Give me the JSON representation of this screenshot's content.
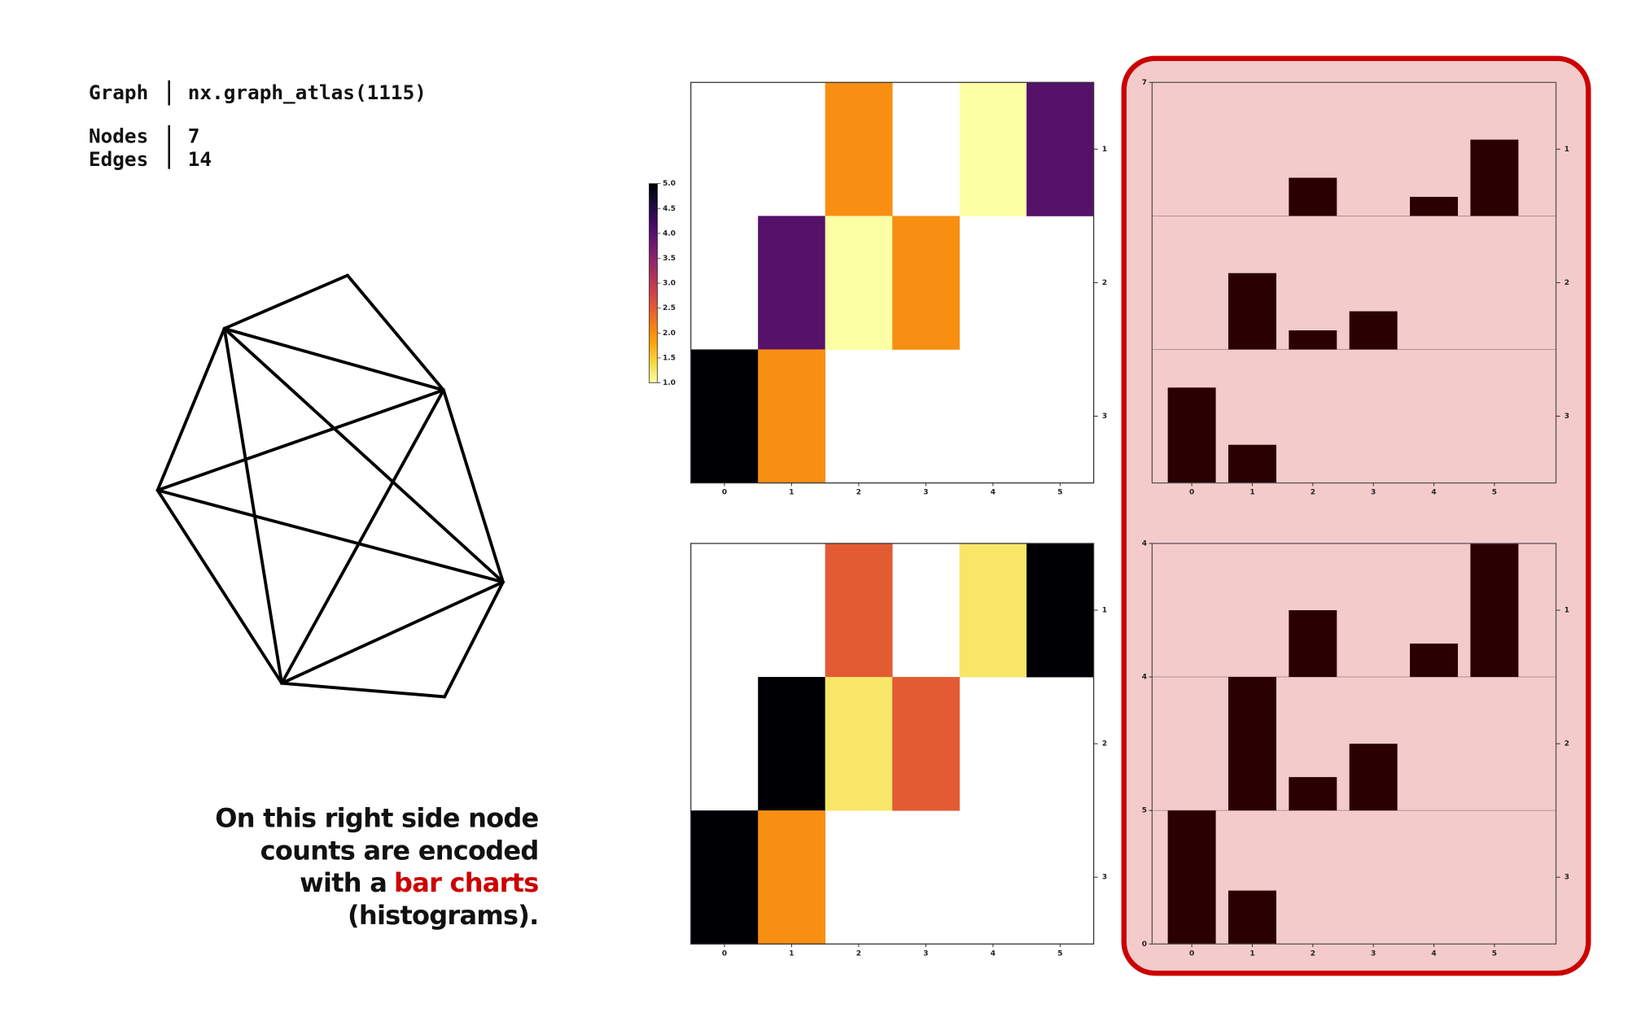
{
  "info": {
    "graph_label": "Graph",
    "graph_value": "nx.graph_atlas(1115)",
    "nodes_label": "Nodes",
    "nodes_value": "7",
    "edges_label": "Edges",
    "edges_value": "14"
  },
  "annotation": {
    "line1": "On this right side node",
    "line2": "counts are encoded",
    "line3": "with a",
    "highlight": "bar charts",
    "line4": "(histograms)."
  },
  "chart_data": [
    {
      "type": "heatmap",
      "categories": [
        "0",
        "1",
        "2",
        "3",
        "4",
        "5"
      ],
      "rows": [
        "1",
        "2",
        "3"
      ],
      "values": [
        [
          null,
          null,
          2,
          null,
          1,
          4
        ],
        [
          null,
          4,
          1,
          2,
          null,
          null
        ],
        [
          5,
          2,
          null,
          null,
          null,
          null
        ]
      ],
      "colormap": "inferno_r",
      "clim": [
        1,
        5
      ],
      "colorbar": true,
      "cticks": [
        {
          "value": 1,
          "label": "1.0"
        },
        {
          "value": 1.5,
          "label": "1.5"
        },
        {
          "value": 2,
          "label": "2.0"
        },
        {
          "value": 2.5,
          "label": "2.5"
        },
        {
          "value": 3,
          "label": "3.0"
        },
        {
          "value": 3.5,
          "label": "3.5"
        },
        {
          "value": 4,
          "label": "4.0"
        },
        {
          "value": 4.5,
          "label": "4.5"
        },
        {
          "value": 5,
          "label": "5.0"
        }
      ]
    },
    {
      "type": "heatmap",
      "categories": [
        "0",
        "1",
        "2",
        "3",
        "4",
        "5"
      ],
      "rows": [
        "1",
        "2",
        "3"
      ],
      "values": [
        [
          null,
          null,
          2,
          null,
          1,
          4
        ],
        [
          null,
          4,
          1,
          2,
          null,
          null
        ],
        [
          5,
          2,
          null,
          null,
          null,
          null
        ]
      ],
      "colormap": "inferno_r",
      "normalize": "row",
      "colorbar": false
    },
    {
      "type": "bar",
      "categories": [
        "0",
        "1",
        "2",
        "3",
        "4",
        "5"
      ],
      "rows": [
        "1",
        "2",
        "3"
      ],
      "values": [
        [
          null,
          null,
          2,
          null,
          1,
          4
        ],
        [
          null,
          4,
          1,
          2,
          null,
          null
        ],
        [
          5,
          2,
          null,
          null,
          null,
          null
        ]
      ],
      "color": "#2a0002",
      "ylim": [
        0,
        7
      ],
      "yticks": [
        7
      ]
    },
    {
      "type": "bar",
      "categories": [
        "0",
        "1",
        "2",
        "3",
        "4",
        "5"
      ],
      "rows": [
        "1",
        "2",
        "3"
      ],
      "values": [
        [
          null,
          null,
          2,
          null,
          1,
          4
        ],
        [
          null,
          4,
          1,
          2,
          null,
          null
        ],
        [
          5,
          2,
          null,
          null,
          null,
          null
        ]
      ],
      "color": "#2a0002",
      "row_max": [
        4,
        4,
        5
      ],
      "ymin": 0
    }
  ]
}
